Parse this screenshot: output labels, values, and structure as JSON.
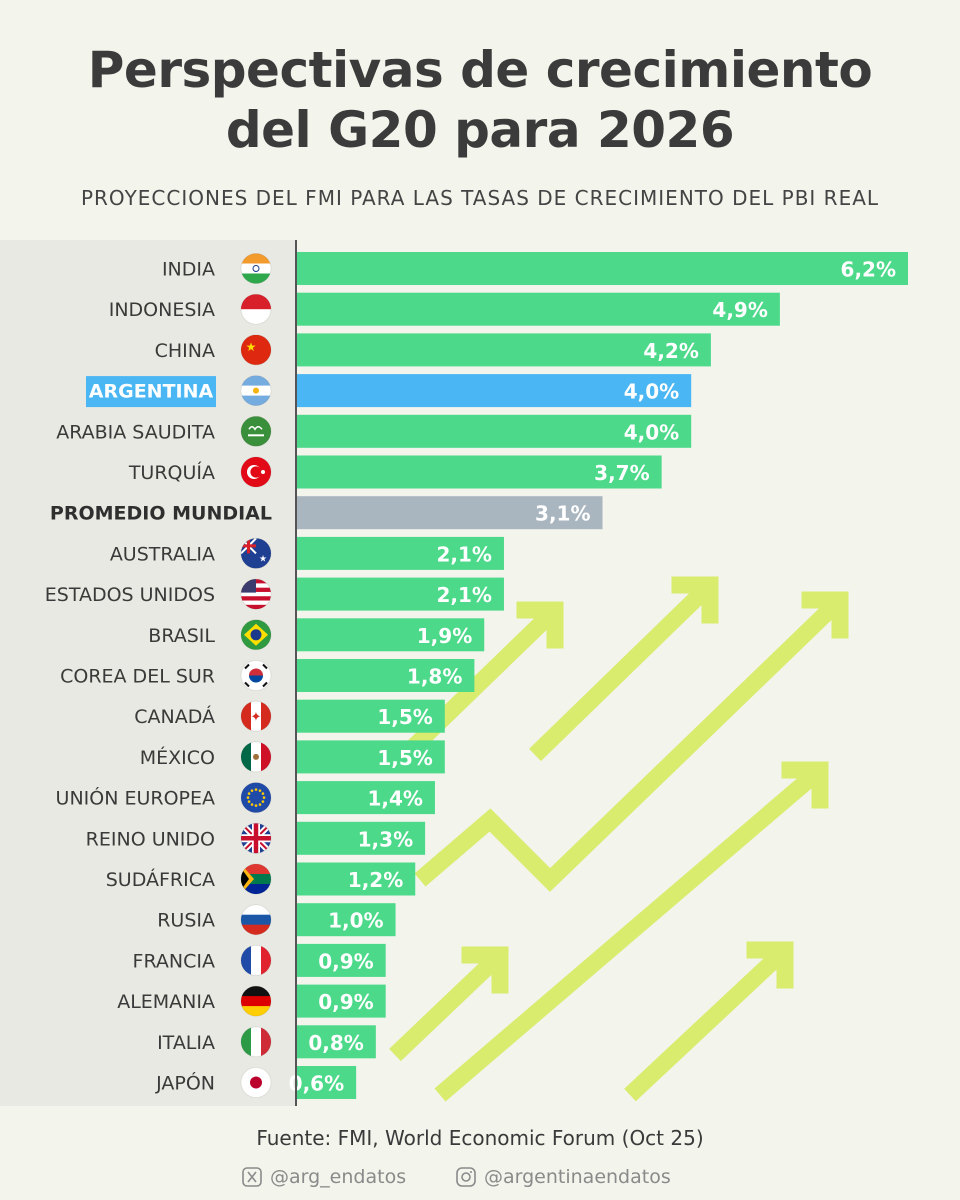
{
  "title_line1": "Perspectivas de crecimiento",
  "title_line2": "del G20 para 2026",
  "subtitle": "PROYECCIONES DEL FMI PARA LAS TASAS DE CRECIMIENTO DEL PBI REAL",
  "source": "Fuente: FMI, World Economic Forum (Oct 25)",
  "social": {
    "x_handle": "@arg_endatos",
    "x_icon": "x-logo-icon",
    "ig_handle": "@argentinaendatos",
    "ig_icon": "instagram-icon"
  },
  "colors": {
    "bar": "#4cd98a",
    "highlight": "#4ab6f4",
    "average": "#a9b5bf",
    "arrows": "#d9ec6e",
    "value_text": "#ffffff"
  },
  "chart_data": {
    "type": "bar",
    "orientation": "horizontal",
    "title": "Perspectivas de crecimiento del G20 para 2026",
    "subtitle": "PROYECCIONES DEL FMI PARA LAS TASAS DE CRECIMIENTO DEL PBI REAL",
    "xlim": [
      0,
      6.2
    ],
    "grid": false,
    "legend": "none",
    "categories": [
      {
        "label": "INDIA",
        "value": 6.2,
        "value_label": "6,2%",
        "flag": "india-flag-icon",
        "style": "normal"
      },
      {
        "label": "INDONESIA",
        "value": 4.9,
        "value_label": "4,9%",
        "flag": "indonesia-flag-icon",
        "style": "normal"
      },
      {
        "label": "CHINA",
        "value": 4.2,
        "value_label": "4,2%",
        "flag": "china-flag-icon",
        "style": "normal"
      },
      {
        "label": "ARGENTINA",
        "value": 4.0,
        "value_label": "4,0%",
        "flag": "argentina-flag-icon",
        "style": "highlight"
      },
      {
        "label": "ARABIA SAUDITA",
        "value": 4.0,
        "value_label": "4,0%",
        "flag": "saudi-arabia-flag-icon",
        "style": "normal"
      },
      {
        "label": "TURQUÍA",
        "value": 3.7,
        "value_label": "3,7%",
        "flag": "turkey-flag-icon",
        "style": "normal"
      },
      {
        "label": "PROMEDIO MUNDIAL",
        "value": 3.1,
        "value_label": "3,1%",
        "flag": "",
        "style": "average"
      },
      {
        "label": "AUSTRALIA",
        "value": 2.1,
        "value_label": "2,1%",
        "flag": "australia-flag-icon",
        "style": "normal"
      },
      {
        "label": "ESTADOS UNIDOS",
        "value": 2.1,
        "value_label": "2,1%",
        "flag": "usa-flag-icon",
        "style": "normal"
      },
      {
        "label": "BRASIL",
        "value": 1.9,
        "value_label": "1,9%",
        "flag": "brazil-flag-icon",
        "style": "normal"
      },
      {
        "label": "COREA DEL SUR",
        "value": 1.8,
        "value_label": "1,8%",
        "flag": "south-korea-flag-icon",
        "style": "normal"
      },
      {
        "label": "CANADÁ",
        "value": 1.5,
        "value_label": "1,5%",
        "flag": "canada-flag-icon",
        "style": "normal"
      },
      {
        "label": "MÉXICO",
        "value": 1.5,
        "value_label": "1,5%",
        "flag": "mexico-flag-icon",
        "style": "normal"
      },
      {
        "label": "UNIÓN EUROPEA",
        "value": 1.4,
        "value_label": "1,4%",
        "flag": "eu-flag-icon",
        "style": "normal"
      },
      {
        "label": "REINO UNIDO",
        "value": 1.3,
        "value_label": "1,3%",
        "flag": "uk-flag-icon",
        "style": "normal"
      },
      {
        "label": "SUDÁFRICA",
        "value": 1.2,
        "value_label": "1,2%",
        "flag": "south-africa-flag-icon",
        "style": "normal"
      },
      {
        "label": "RUSIA",
        "value": 1.0,
        "value_label": "1,0%",
        "flag": "russia-flag-icon",
        "style": "normal"
      },
      {
        "label": "FRANCIA",
        "value": 0.9,
        "value_label": "0,9%",
        "flag": "france-flag-icon",
        "style": "normal"
      },
      {
        "label": "ALEMANIA",
        "value": 0.9,
        "value_label": "0,9%",
        "flag": "germany-flag-icon",
        "style": "normal"
      },
      {
        "label": "ITALIA",
        "value": 0.8,
        "value_label": "0,8%",
        "flag": "italy-flag-icon",
        "style": "normal"
      },
      {
        "label": "JAPÓN",
        "value": 0.6,
        "value_label": "0,6%",
        "flag": "japan-flag-icon",
        "style": "normal"
      }
    ]
  }
}
